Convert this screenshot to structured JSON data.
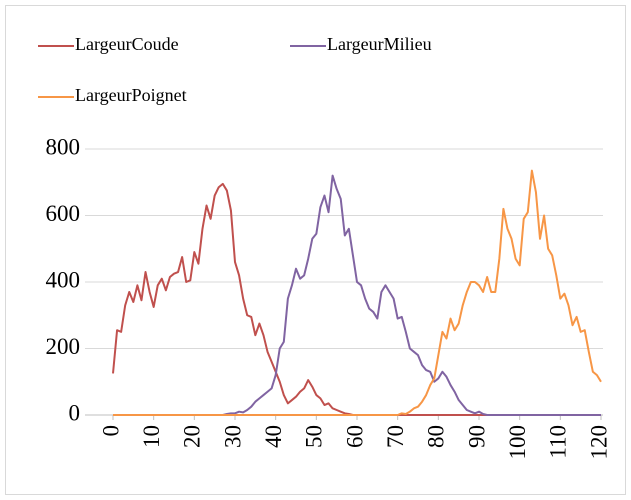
{
  "chart_data": {
    "type": "line",
    "x": [
      0,
      1,
      2,
      3,
      4,
      5,
      6,
      7,
      8,
      9,
      10,
      11,
      12,
      13,
      14,
      15,
      16,
      17,
      18,
      19,
      20,
      21,
      22,
      23,
      24,
      25,
      26,
      27,
      28,
      29,
      30,
      31,
      32,
      33,
      34,
      35,
      36,
      37,
      38,
      39,
      40,
      41,
      42,
      43,
      44,
      45,
      46,
      47,
      48,
      49,
      50,
      51,
      52,
      53,
      54,
      55,
      56,
      57,
      58,
      59,
      60,
      61,
      62,
      63,
      64,
      65,
      66,
      67,
      68,
      69,
      70,
      71,
      72,
      73,
      74,
      75,
      76,
      77,
      78,
      79,
      80,
      81,
      82,
      83,
      84,
      85,
      86,
      87,
      88,
      89,
      90,
      91,
      92,
      93,
      94,
      95,
      96,
      97,
      98,
      99,
      100,
      101,
      102,
      103,
      104,
      105,
      106,
      107,
      108,
      109,
      110,
      111,
      112,
      113,
      114,
      115,
      116,
      117,
      118,
      119,
      120
    ],
    "series": [
      {
        "name": "LargeurCoude",
        "color": "#c0504d",
        "values": [
          125,
          255,
          250,
          330,
          370,
          340,
          390,
          345,
          430,
          370,
          325,
          390,
          410,
          375,
          415,
          425,
          430,
          475,
          400,
          405,
          490,
          455,
          560,
          630,
          590,
          660,
          685,
          695,
          675,
          615,
          460,
          420,
          350,
          300,
          295,
          240,
          275,
          240,
          190,
          160,
          130,
          100,
          60,
          35,
          45,
          55,
          70,
          80,
          105,
          85,
          60,
          50,
          30,
          35,
          20,
          15,
          10,
          5,
          3,
          0,
          0,
          0,
          0,
          0,
          0,
          0,
          0,
          0,
          0,
          0,
          0,
          0,
          0,
          0,
          0,
          0,
          0,
          0,
          0,
          0,
          0,
          0,
          0,
          0,
          0,
          0,
          0,
          0,
          0,
          0,
          0,
          0,
          0,
          0,
          0,
          0,
          0,
          0,
          0,
          0,
          0,
          0,
          0,
          0,
          0,
          0,
          0,
          0,
          0,
          0,
          0,
          0,
          0,
          0,
          0,
          0,
          0,
          0,
          0,
          0,
          0
        ]
      },
      {
        "name": "LargeurMilieu",
        "color": "#8064a2",
        "values": [
          0,
          0,
          0,
          0,
          0,
          0,
          0,
          0,
          0,
          0,
          0,
          0,
          0,
          0,
          0,
          0,
          0,
          0,
          0,
          0,
          0,
          0,
          0,
          0,
          0,
          0,
          0,
          0,
          3,
          5,
          5,
          10,
          8,
          15,
          25,
          40,
          50,
          60,
          70,
          80,
          120,
          200,
          220,
          350,
          390,
          440,
          410,
          420,
          470,
          530,
          545,
          625,
          660,
          610,
          720,
          680,
          650,
          540,
          560,
          480,
          400,
          390,
          350,
          320,
          310,
          290,
          370,
          390,
          370,
          350,
          290,
          295,
          250,
          200,
          190,
          180,
          150,
          135,
          130,
          100,
          110,
          130,
          115,
          90,
          70,
          45,
          30,
          15,
          10,
          5,
          10,
          3,
          0,
          0,
          0,
          0,
          0,
          0,
          0,
          0,
          0,
          0,
          0,
          0,
          0,
          0,
          0,
          0,
          0,
          0,
          0,
          0,
          0,
          0,
          0,
          0,
          0,
          0,
          0,
          0,
          0
        ]
      },
      {
        "name": "LargeurPoignet",
        "color": "#f79646",
        "values": [
          0,
          0,
          0,
          0,
          0,
          0,
          0,
          0,
          0,
          0,
          0,
          0,
          0,
          0,
          0,
          0,
          0,
          0,
          0,
          0,
          0,
          0,
          0,
          0,
          0,
          0,
          0,
          0,
          0,
          0,
          0,
          0,
          0,
          0,
          0,
          0,
          0,
          0,
          0,
          0,
          0,
          0,
          0,
          0,
          0,
          0,
          0,
          0,
          0,
          0,
          0,
          0,
          0,
          0,
          0,
          0,
          0,
          0,
          0,
          0,
          0,
          0,
          0,
          0,
          0,
          0,
          0,
          0,
          0,
          0,
          0,
          5,
          3,
          10,
          20,
          25,
          40,
          60,
          90,
          110,
          180,
          250,
          230,
          290,
          255,
          275,
          330,
          370,
          400,
          400,
          390,
          370,
          415,
          370,
          370,
          470,
          620,
          560,
          530,
          470,
          450,
          590,
          610,
          735,
          670,
          530,
          600,
          500,
          480,
          420,
          350,
          365,
          330,
          270,
          295,
          250,
          255,
          190,
          130,
          120,
          100
        ]
      }
    ],
    "xlim": [
      0,
      120
    ],
    "xticks": [
      0,
      10,
      20,
      30,
      40,
      50,
      60,
      70,
      80,
      90,
      100,
      110,
      120
    ],
    "ylim": [
      0,
      800
    ],
    "yticks": [
      0,
      200,
      400,
      600,
      800
    ],
    "grid": true,
    "legend": "top"
  }
}
